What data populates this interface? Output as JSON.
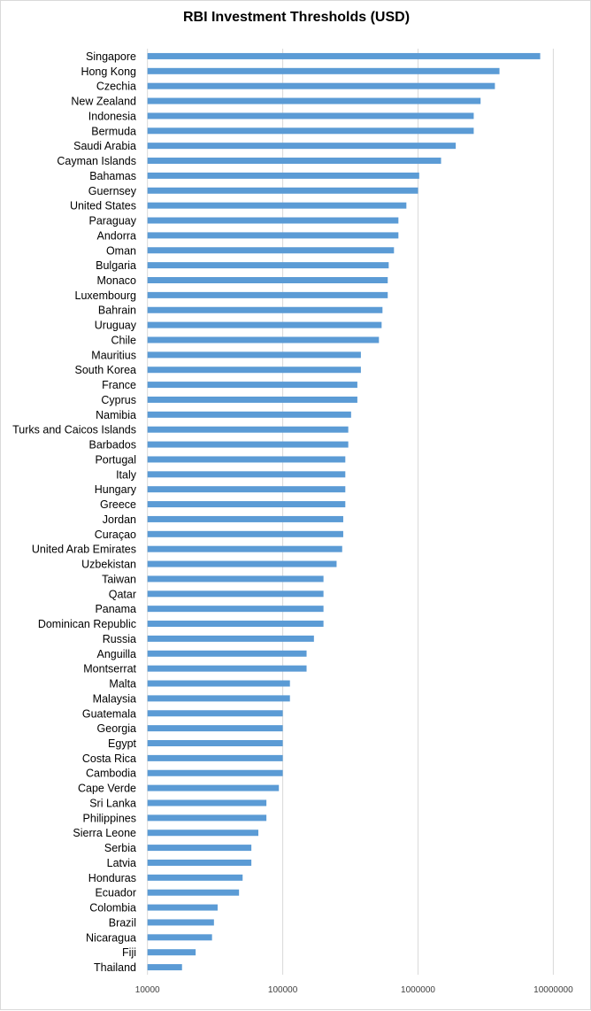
{
  "chart_data": {
    "type": "bar",
    "orientation": "horizontal",
    "title": "RBI Investment Thresholds (USD)",
    "xlabel": "",
    "ylabel": "",
    "xscale": "log",
    "xlim": [
      10000,
      10000000
    ],
    "xticks": [
      "10000",
      "100000",
      "1000000",
      "10000000"
    ],
    "grid": true,
    "bar_color": "#5B9BD5",
    "categories": [
      "Singapore",
      "Hong Kong",
      "Czechia",
      "New Zealand",
      "Indonesia",
      "Bermuda",
      "Saudi Arabia",
      "Cayman Islands",
      "Bahamas",
      "Guernsey",
      "United States",
      "Paraguay",
      "Andorra",
      "Oman",
      "Bulgaria",
      "Monaco",
      "Luxembourg",
      "Bahrain",
      "Uruguay",
      "Chile",
      "Mauritius",
      "South Korea",
      "France",
      "Cyprus",
      "Namibia",
      "Turks and Caicos Islands",
      "Barbados",
      "Portugal",
      "Italy",
      "Hungary",
      "Greece",
      "Jordan",
      "Curaçao",
      "United Arab Emirates",
      "Uzbekistan",
      "Taiwan",
      "Qatar",
      "Panama",
      "Dominican Republic",
      "Russia",
      "Anguilla",
      "Montserrat",
      "Malta",
      "Malaysia",
      "Guatemala",
      "Georgia",
      "Egypt",
      "Costa Rica",
      "Cambodia",
      "Cape Verde",
      "Sri Lanka",
      "Philippines",
      "Sierra Leone",
      "Serbia",
      "Latvia",
      "Honduras",
      "Ecuador",
      "Colombia",
      "Brazil",
      "Nicaragua",
      "Fiji",
      "Thailand"
    ],
    "values": [
      8000000,
      4000000,
      3700000,
      2900000,
      2580000,
      2580000,
      1900000,
      1480000,
      1020000,
      1000000,
      820000,
      716000,
      716000,
      664000,
      607000,
      597000,
      597000,
      546000,
      538000,
      514000,
      378000,
      378000,
      356000,
      356000,
      320000,
      305000,
      305000,
      290000,
      290000,
      290000,
      290000,
      280000,
      280000,
      275000,
      250000,
      200000,
      200000,
      200000,
      200000,
      170000,
      150000,
      150000,
      113000,
      113000,
      100000,
      100000,
      100000,
      100000,
      100000,
      93600,
      75700,
      75700,
      66000,
      58600,
      58600,
      50500,
      47500,
      33000,
      31000,
      30000,
      22700,
      18000
    ]
  }
}
